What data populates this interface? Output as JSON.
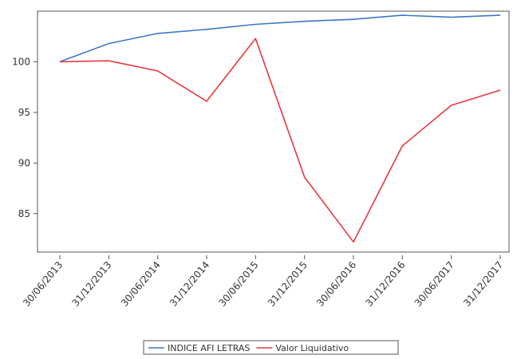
{
  "chart_data": {
    "type": "line",
    "categories": [
      "30/06/2013",
      "31/12/2013",
      "30/06/2014",
      "31/12/2014",
      "30/06/2015",
      "31/12/2015",
      "30/06/2016",
      "31/12/2016",
      "30/06/2017",
      "31/12/2017"
    ],
    "series": [
      {
        "name": "INDICE AFI LETRAS",
        "color": "#3a78c9",
        "values": [
          100.0,
          101.8,
          102.8,
          103.2,
          103.7,
          104.0,
          104.2,
          104.6,
          104.4,
          104.6
        ]
      },
      {
        "name": "Valor Liquidativo",
        "color": "#e8383d",
        "values": [
          100.0,
          100.1,
          99.1,
          96.1,
          102.3,
          88.6,
          82.2,
          91.7,
          95.7,
          97.2
        ]
      }
    ],
    "yticks": [
      85,
      90,
      95,
      100
    ],
    "ylim": [
      81.2,
      105.0
    ],
    "grid": false,
    "legend": "bottom"
  }
}
